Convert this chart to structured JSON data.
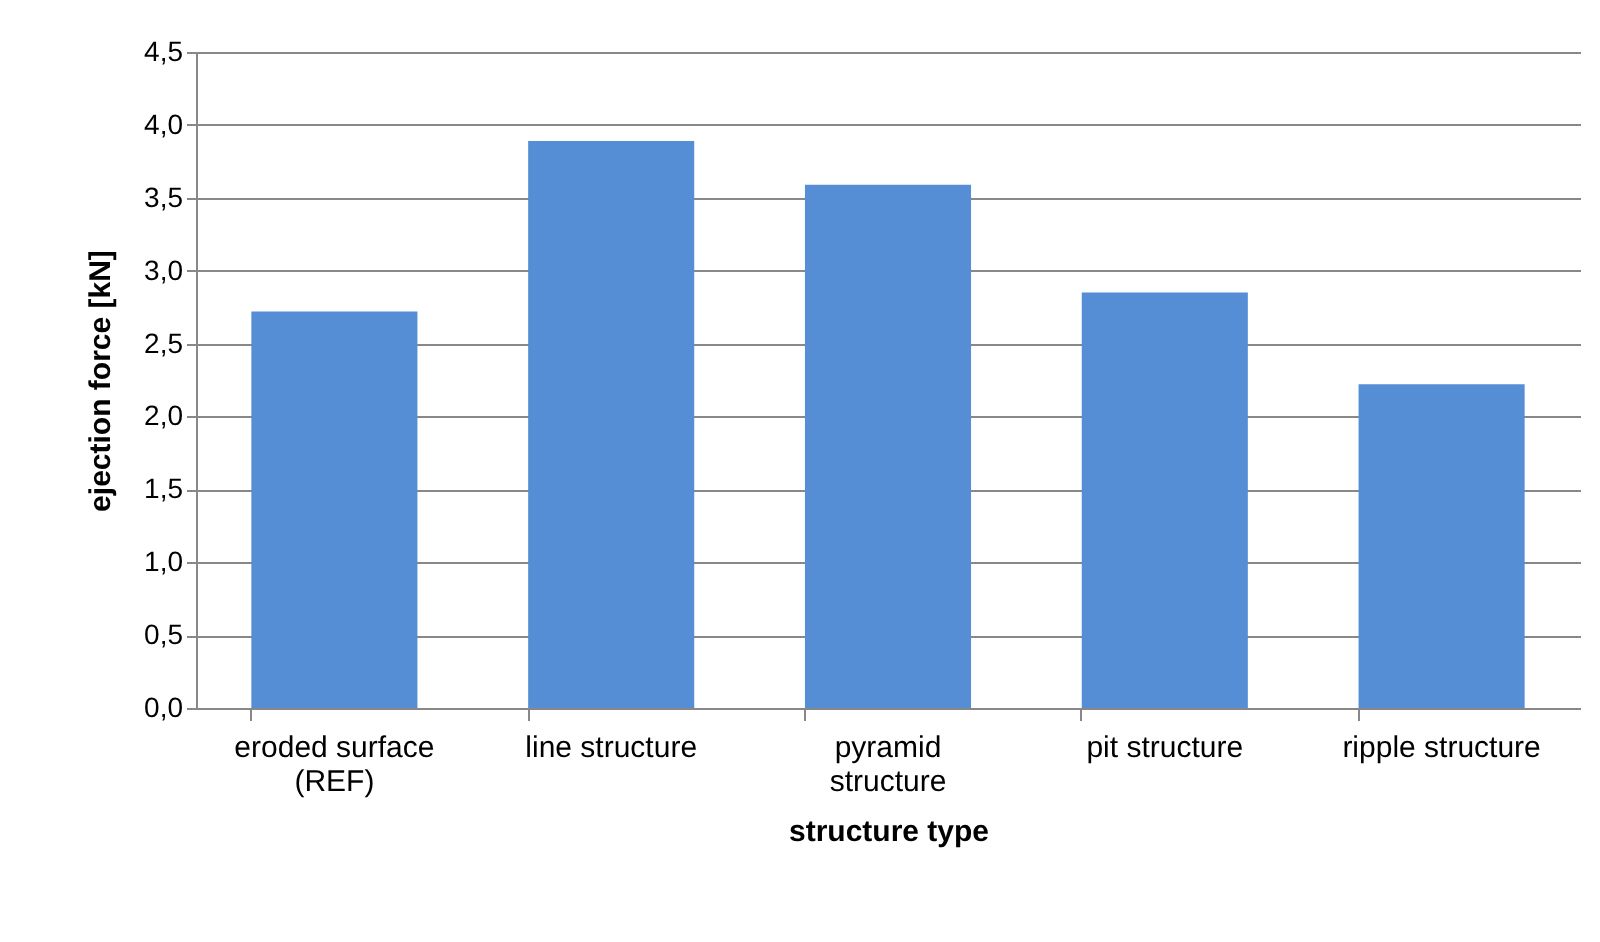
{
  "chart_data": {
    "type": "bar",
    "xlabel": "structure type",
    "ylabel": "ejection force [kN]",
    "categories": [
      "eroded surface (REF)",
      "line structure",
      "pyramid structure",
      "pit structure",
      "ripple structure"
    ],
    "values": [
      2.72,
      3.89,
      3.59,
      2.85,
      2.22
    ],
    "color": "#558ed5",
    "ylim": [
      0,
      4.5
    ],
    "yticks": [
      {
        "value": 0,
        "label": "0,0"
      },
      {
        "value": 0.5,
        "label": "0,5"
      },
      {
        "value": 1,
        "label": "1,0"
      },
      {
        "value": 1.5,
        "label": "1,5"
      },
      {
        "value": 2,
        "label": "2,0"
      },
      {
        "value": 2.5,
        "label": "2,5"
      },
      {
        "value": 3,
        "label": "3,0"
      },
      {
        "value": 3.5,
        "label": "3,5"
      },
      {
        "value": 4,
        "label": "4,0"
      },
      {
        "value": 4.5,
        "label": "4,5"
      }
    ],
    "grid": "y"
  }
}
